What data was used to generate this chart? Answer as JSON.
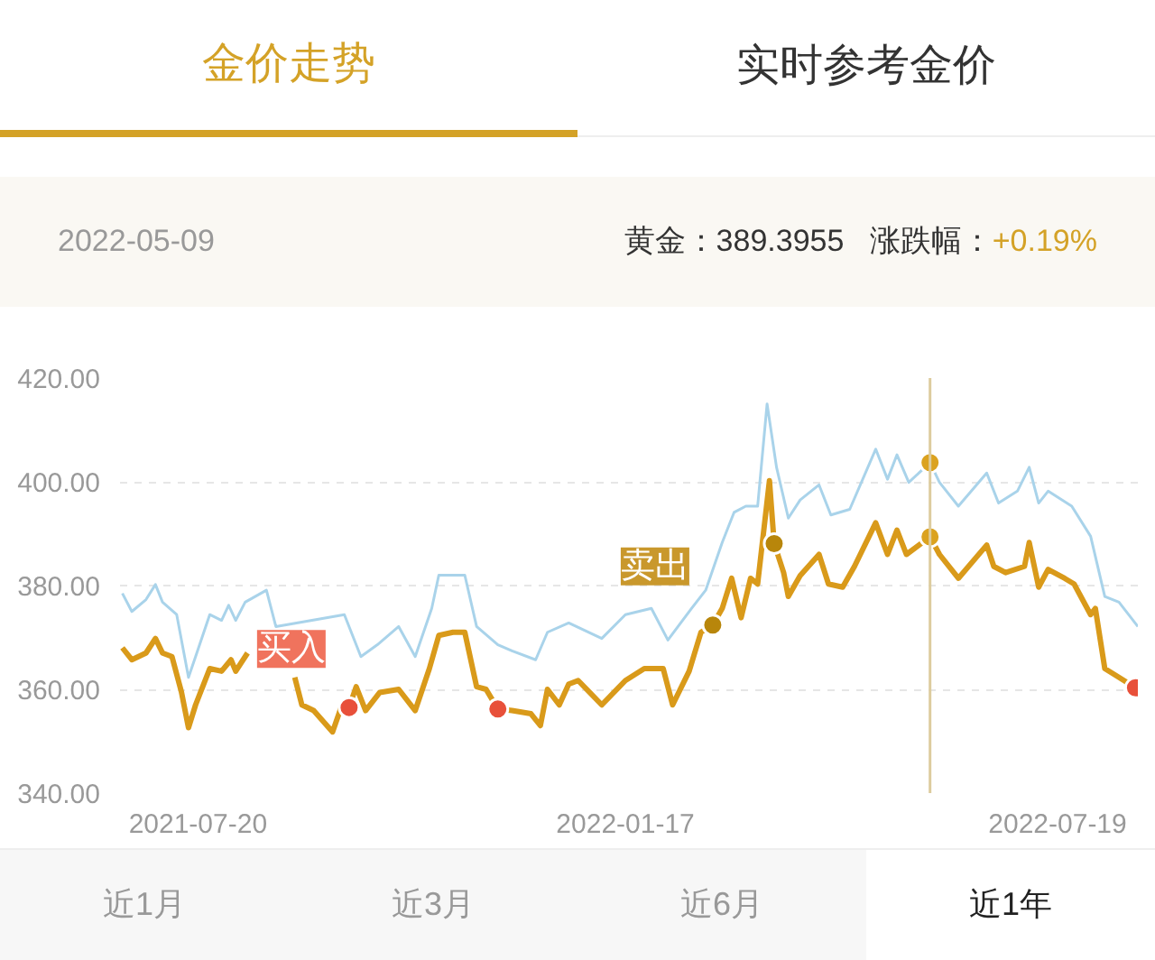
{
  "chart_data": {
    "type": "line",
    "title": "金价走势",
    "annotations": [
      "实时参考金价",
      "2022-05-09",
      "黄金：389.3955",
      "涨跌幅：",
      "+0.19%",
      "近1月",
      "近3月",
      "近6月",
      "近1年",
      {
        "text": "买入",
        "x": "2021-09-22",
        "y": 356.5
      },
      {
        "text": "卖出",
        "x": "2022-02-23",
        "y": 372.4
      }
    ],
    "xlim": [
      "2021-06-17",
      "2022-08-22"
    ],
    "xticks": [
      "2021-07-20",
      "2022-01-17",
      "2022-07-19"
    ],
    "ylim": [
      340,
      420
    ],
    "yticks": [
      {
        "value": 340,
        "label": "340.00"
      },
      {
        "value": 360,
        "label": "360.00"
      },
      {
        "value": 380,
        "label": "380.00"
      },
      {
        "value": 400,
        "label": "400.00"
      },
      {
        "value": 420,
        "label": "420.00"
      }
    ],
    "grid": "y",
    "ref_lines": [
      {
        "axis": "x",
        "value": "2022-05-26",
        "color": "#ddcc9e"
      }
    ],
    "series": [
      {
        "color": "#a9d3ea",
        "x": [
          "2021-06-18",
          "2021-06-22",
          "2021-06-28",
          "2021-07-02",
          "2021-07-05",
          "2021-07-11",
          "2021-07-16",
          "2021-07-19",
          "2021-07-25",
          "2021-07-30",
          "2021-08-02",
          "2021-08-05",
          "2021-08-09",
          "2021-08-18",
          "2021-08-22",
          "2021-09-20",
          "2021-09-27",
          "2021-10-04",
          "2021-10-13",
          "2021-10-20",
          "2021-10-27",
          "2021-10-30",
          "2021-11-10",
          "2021-11-15",
          "2021-11-24",
          "2021-11-30",
          "2021-12-10",
          "2021-12-15",
          "2021-12-24",
          "2022-01-07",
          "2022-01-17",
          "2022-01-28",
          "2022-02-04",
          "2022-02-14",
          "2022-02-20",
          "2022-02-27",
          "2022-03-04",
          "2022-03-09",
          "2022-03-14",
          "2022-03-18",
          "2022-03-22",
          "2022-03-27",
          "2022-04-01",
          "2022-04-09",
          "2022-04-14",
          "2022-04-22",
          "2022-05-03",
          "2022-05-08",
          "2022-05-12",
          "2022-05-17",
          "2022-05-26",
          "2022-05-30",
          "2022-06-07",
          "2022-06-19",
          "2022-06-24",
          "2022-07-02",
          "2022-07-07",
          "2022-07-11",
          "2022-07-15",
          "2022-07-25",
          "2022-08-02",
          "2022-08-08",
          "2022-08-14",
          "2022-08-22"
        ],
        "values": [
          378.5,
          375.0,
          377.3,
          380.2,
          376.8,
          374.4,
          362.3,
          366.3,
          374.4,
          373.3,
          376.2,
          373.3,
          376.8,
          379.1,
          372.1,
          374.4,
          366.3,
          368.6,
          372.1,
          366.3,
          375.6,
          382.0,
          382.0,
          372.1,
          368.6,
          367.4,
          365.7,
          371.0,
          372.8,
          369.8,
          374.4,
          375.6,
          369.5,
          375.6,
          379.1,
          388.3,
          394.1,
          395.3,
          395.3,
          415.0,
          402.8,
          393.0,
          396.5,
          399.4,
          393.6,
          394.7,
          406.3,
          400.5,
          405.2,
          399.9,
          403.7,
          399.9,
          395.3,
          401.7,
          395.9,
          398.2,
          402.8,
          395.9,
          398.2,
          395.3,
          389.5,
          377.9,
          376.8,
          372.1
        ]
      },
      {
        "color": "#d99a1a",
        "x": [
          "2021-06-18",
          "2021-06-22",
          "2021-06-28",
          "2021-07-02",
          "2021-07-05",
          "2021-07-09",
          "2021-07-13",
          "2021-07-16",
          "2021-07-19",
          "2021-07-25",
          "2021-07-30",
          "2021-08-03",
          "2021-08-05",
          "2021-08-10",
          "2021-08-18",
          "2021-08-25",
          "2021-08-30",
          "2021-09-02",
          "2021-09-07",
          "2021-09-15",
          "2021-09-19",
          "2021-09-22",
          "2021-09-25",
          "2021-09-29",
          "2021-10-05",
          "2021-10-13",
          "2021-10-20",
          "2021-10-26",
          "2021-10-30",
          "2021-11-05",
          "2021-11-10",
          "2021-11-15",
          "2021-11-19",
          "2021-11-24",
          "2021-11-30",
          "2021-12-08",
          "2021-12-12",
          "2021-12-15",
          "2021-12-20",
          "2021-12-24",
          "2021-12-28",
          "2022-01-07",
          "2022-01-17",
          "2022-01-25",
          "2022-02-02",
          "2022-02-06",
          "2022-02-13",
          "2022-02-18",
          "2022-02-23",
          "2022-02-27",
          "2022-03-03",
          "2022-03-07",
          "2022-03-11",
          "2022-03-14",
          "2022-03-19",
          "2022-03-21",
          "2022-03-25",
          "2022-03-27",
          "2022-04-01",
          "2022-04-09",
          "2022-04-13",
          "2022-04-19",
          "2022-04-24",
          "2022-05-03",
          "2022-05-08",
          "2022-05-12",
          "2022-05-16",
          "2022-05-26",
          "2022-05-30",
          "2022-06-07",
          "2022-06-19",
          "2022-06-22",
          "2022-06-27",
          "2022-07-05",
          "2022-07-07",
          "2022-07-11",
          "2022-07-15",
          "2022-07-22",
          "2022-07-26",
          "2022-08-02",
          "2022-08-04",
          "2022-08-08",
          "2022-08-14",
          "2022-08-21"
        ],
        "values": [
          368.0,
          365.7,
          367.0,
          369.8,
          367.0,
          366.3,
          359.5,
          352.6,
          357.0,
          364.0,
          363.5,
          365.7,
          363.5,
          367.0,
          null,
          null,
          362.3,
          357.0,
          355.9,
          351.8,
          357.0,
          356.5,
          360.5,
          355.9,
          359.4,
          360.0,
          355.9,
          364.0,
          370.4,
          371.0,
          371.0,
          360.5,
          360.0,
          356.2,
          355.9,
          355.3,
          353.0,
          360.0,
          357.0,
          361.0,
          361.7,
          357.0,
          361.7,
          364.0,
          364.0,
          357.0,
          363.5,
          371.0,
          372.4,
          375.6,
          381.4,
          373.8,
          381.4,
          380.3,
          400.2,
          388.1,
          382.5,
          377.9,
          381.9,
          386.0,
          380.3,
          379.7,
          383.7,
          392.1,
          386.0,
          390.7,
          386.0,
          389.4,
          386.0,
          381.4,
          387.8,
          383.7,
          382.5,
          383.7,
          388.3,
          379.7,
          383.1,
          381.4,
          380.3,
          374.4,
          375.6,
          364.0,
          362.3,
          360.3
        ]
      },
      {
        "type": "scatter",
        "marker": "circle",
        "color": "#e8503a",
        "x": [
          "2021-09-22",
          "2021-11-24",
          "2022-08-21"
        ],
        "values": [
          356.5,
          356.2,
          360.3
        ]
      },
      {
        "type": "scatter",
        "marker": "circle",
        "color": "#b8860b",
        "x": [
          "2022-02-23",
          "2022-03-21"
        ],
        "values": [
          372.4,
          388.1
        ]
      },
      {
        "type": "scatter",
        "marker": "circle",
        "color": "#dba21f",
        "x": [
          "2022-05-26",
          "2022-05-26"
        ],
        "values": [
          403.7,
          389.4
        ]
      }
    ]
  }
}
